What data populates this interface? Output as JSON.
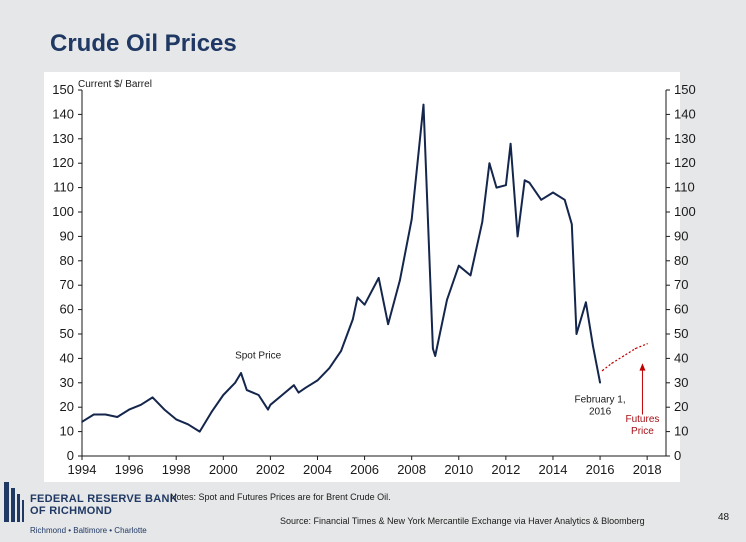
{
  "slide": {
    "title": "Crude Oil Prices",
    "notes": "Notes: Spot and Futures Prices are for Brent Crude Oil.",
    "source": "Source: Financial Times & New York Mercantile Exchange via Haver Analytics & Bloomberg",
    "page_number": "48"
  },
  "logo": {
    "line1": "FEDERAL RESERVE BANK",
    "line2": "OF RICHMOND",
    "cities": "Richmond • Baltimore • Charlotte",
    "color": "#1f3864"
  },
  "colors": {
    "spot_line": "#15264d",
    "futures_line": "#c00000",
    "title": "#1f3864"
  },
  "chart_data": {
    "type": "line",
    "title": "",
    "ylabel": "Current $/ Barrel",
    "xlabel": "",
    "xlim": [
      1994,
      2018.8
    ],
    "ylim": [
      0,
      150
    ],
    "xticks": [
      "1994",
      "1996",
      "1998",
      "2000",
      "2002",
      "2004",
      "2006",
      "2008",
      "2010",
      "2012",
      "2014",
      "2016",
      "2018"
    ],
    "yticks": [
      "0",
      "10",
      "20",
      "30",
      "40",
      "50",
      "60",
      "70",
      "80",
      "90",
      "100",
      "110",
      "120",
      "130",
      "140",
      "150"
    ],
    "legend": "none",
    "grid": false,
    "series": [
      {
        "name": "Spot Price",
        "style": "solid",
        "x": [
          1994.0,
          1994.5,
          1995.0,
          1995.5,
          1996.0,
          1996.5,
          1997.0,
          1997.5,
          1998.0,
          1998.5,
          1999.0,
          1999.5,
          2000.0,
          2000.5,
          2000.75,
          2001.0,
          2001.5,
          2001.9,
          2002.0,
          2002.5,
          2003.0,
          2003.2,
          2003.5,
          2004.0,
          2004.5,
          2005.0,
          2005.5,
          2005.7,
          2006.0,
          2006.6,
          2007.0,
          2007.5,
          2008.0,
          2008.5,
          2008.9,
          2009.0,
          2009.5,
          2010.0,
          2010.5,
          2011.0,
          2011.3,
          2011.6,
          2012.0,
          2012.2,
          2012.5,
          2012.8,
          2013.0,
          2013.5,
          2014.0,
          2014.5,
          2014.8,
          2015.0,
          2015.4,
          2015.7,
          2016.0
        ],
        "y": [
          14,
          17,
          17,
          16,
          19,
          21,
          24,
          19,
          15,
          13,
          10,
          18,
          25,
          30,
          34,
          27,
          25,
          19,
          21,
          25,
          29,
          26,
          28,
          31,
          36,
          43,
          56,
          65,
          62,
          73,
          54,
          72,
          97,
          144,
          44,
          41,
          64,
          78,
          74,
          96,
          120,
          110,
          111,
          128,
          90,
          113,
          112,
          105,
          108,
          105,
          95,
          50,
          63,
          45,
          30
        ]
      },
      {
        "name": "Futures Price",
        "style": "dotted",
        "x": [
          2016.1,
          2016.5,
          2017.0,
          2017.5,
          2018.0
        ],
        "y": [
          35,
          38,
          41,
          44,
          46
        ]
      }
    ],
    "annotations": [
      {
        "text": "Spot Price"
      },
      {
        "text": "February 1, 2016"
      },
      {
        "text": "Futures Price"
      }
    ]
  }
}
